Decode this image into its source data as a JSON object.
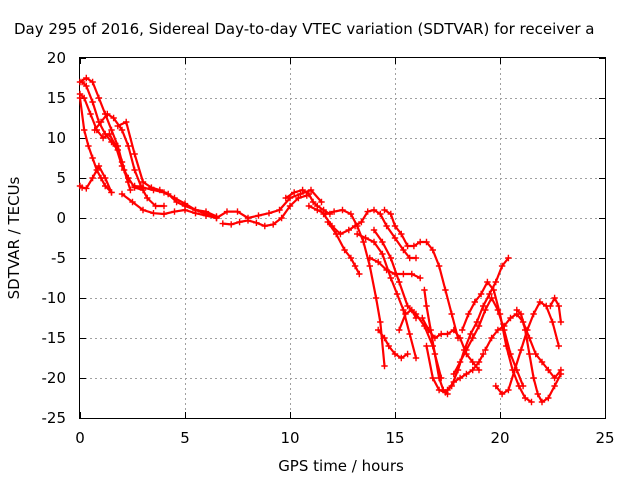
{
  "chart_data": {
    "type": "scatter",
    "title": "Day 295 of 2016, Sidereal Day-to-day VTEC variation (SDTVAR) for receiver a",
    "xlabel": "GPS time / hours",
    "ylabel": "SDTVAR / TECUs",
    "xlim": [
      0,
      25
    ],
    "ylim": [
      -25,
      20
    ],
    "xticks": [
      "0",
      "5",
      "10",
      "15",
      "20",
      "25"
    ],
    "yticks": [
      "20",
      "15",
      "10",
      "5",
      "0",
      "-5",
      "-10",
      "-15",
      "-20",
      "-25"
    ],
    "grid": true,
    "legend": "none",
    "marker": "plus",
    "color": "#ff0000",
    "series": [
      {
        "x": [
          0.0,
          0.1,
          0.3,
          0.6,
          0.9,
          1.2,
          1.5
        ],
        "y": [
          4.0,
          3.8,
          3.7,
          5.0,
          6.5,
          5.0,
          3.2
        ]
      },
      {
        "x": [
          0.0,
          0.2,
          0.4,
          0.6,
          0.8,
          1.0,
          1.2,
          1.5
        ],
        "y": [
          15.0,
          11.0,
          9.0,
          7.5,
          6.0,
          5.0,
          4.0,
          3.2
        ]
      },
      {
        "x": [
          0.0,
          0.2,
          0.5,
          0.8,
          1.1,
          1.4,
          1.7,
          2.0,
          2.3,
          2.6,
          3.0
        ],
        "y": [
          15.5,
          15.0,
          13.0,
          11.0,
          10.0,
          10.5,
          9.0,
          6.5,
          5.0,
          3.8,
          3.5
        ]
      },
      {
        "x": [
          0.1,
          0.3,
          0.6,
          0.9,
          1.2,
          1.5,
          1.8,
          2.0,
          2.3
        ],
        "y": [
          17.0,
          16.5,
          14.5,
          12.0,
          10.5,
          9.5,
          8.5,
          7.0,
          4.5
        ]
      },
      {
        "x": [
          0.0,
          0.3,
          0.6,
          0.9,
          1.2,
          1.5,
          1.8,
          2.1,
          2.4
        ],
        "y": [
          17.0,
          17.5,
          17.0,
          15.0,
          13.0,
          11.0,
          9.0,
          6.0,
          3.5
        ]
      },
      {
        "x": [
          0.7,
          1.0,
          1.3,
          1.6,
          2.0,
          2.3,
          2.6,
          2.9,
          3.2,
          3.6,
          4.0
        ],
        "y": [
          11.0,
          12.0,
          13.0,
          12.5,
          11.0,
          9.0,
          6.0,
          4.0,
          2.5,
          1.5,
          1.5
        ]
      },
      {
        "x": [
          1.8,
          2.2,
          2.6,
          3.0,
          3.4,
          3.8,
          4.2,
          4.6,
          5.0,
          5.5,
          6.0,
          6.5
        ],
        "y": [
          11.5,
          12.0,
          8.0,
          4.5,
          3.8,
          3.5,
          3.0,
          2.0,
          1.5,
          1.0,
          0.8,
          0.2
        ]
      },
      {
        "x": [
          2.0,
          2.5,
          3.0,
          3.5,
          4.0,
          4.5,
          5.0,
          5.5,
          6.0,
          6.5,
          7.0,
          7.5,
          8.0,
          8.5,
          9.0,
          9.5,
          10.0,
          10.5,
          11.0,
          11.5
        ],
        "y": [
          3.0,
          2.0,
          1.0,
          0.6,
          0.5,
          0.8,
          1.0,
          0.6,
          0.3,
          0.0,
          0.8,
          0.8,
          0.0,
          0.3,
          0.6,
          1.0,
          2.5,
          3.0,
          3.5,
          2.0
        ]
      },
      {
        "x": [
          2.6,
          3.0,
          3.5,
          4.0,
          4.5,
          5.0,
          5.5,
          6.0,
          6.5
        ],
        "y": [
          4.0,
          3.8,
          3.5,
          3.2,
          2.5,
          1.8,
          1.0,
          0.5,
          0.0
        ]
      },
      {
        "x": [
          6.8,
          7.2,
          7.6,
          8.0,
          8.4,
          8.8,
          9.2,
          9.6,
          10.0,
          10.4,
          10.8
        ],
        "y": [
          -0.7,
          -0.8,
          -0.5,
          -0.3,
          -0.6,
          -1.0,
          -0.8,
          0.0,
          1.5,
          2.5,
          2.8
        ]
      },
      {
        "x": [
          9.8,
          10.2,
          10.6,
          10.9,
          11.1,
          11.3,
          11.6,
          11.9
        ],
        "y": [
          2.5,
          3.2,
          3.5,
          3.0,
          2.0,
          1.5,
          1.0,
          0.5
        ]
      },
      {
        "x": [
          10.9,
          11.3,
          11.7,
          12.1,
          12.5,
          12.9,
          13.2,
          13.5,
          13.8,
          14.1,
          14.3,
          14.5
        ],
        "y": [
          1.5,
          1.0,
          0.5,
          0.8,
          1.0,
          0.5,
          -1.0,
          -3.0,
          -6.0,
          -10.0,
          -13.0,
          -18.5
        ]
      },
      {
        "x": [
          11.6,
          12.0,
          12.4,
          12.8,
          13.1,
          13.4,
          13.7,
          14.0,
          14.3,
          14.6,
          15.0,
          15.4,
          15.7,
          16.0
        ],
        "y": [
          0.5,
          -1.0,
          -2.0,
          -1.5,
          -1.0,
          -0.5,
          0.8,
          1.0,
          0.5,
          -1.0,
          -2.5,
          -4.0,
          -5.0,
          -5.0
        ]
      },
      {
        "x": [
          11.8,
          12.2,
          12.6,
          12.9,
          13.1,
          13.3
        ],
        "y": [
          -0.5,
          -2.0,
          -4.0,
          -5.0,
          -6.0,
          -7.0
        ]
      },
      {
        "x": [
          13.2,
          13.6,
          14.0,
          14.4,
          14.8,
          15.1,
          15.4,
          15.7,
          16.0
        ],
        "y": [
          -2.0,
          -2.5,
          -3.0,
          -4.5,
          -7.5,
          -9.5,
          -11.5,
          -14.5,
          -17.5
        ]
      },
      {
        "x": [
          13.8,
          14.2,
          14.6,
          15.0,
          15.4,
          15.8,
          16.2
        ],
        "y": [
          -5.0,
          -5.5,
          -6.5,
          -7.0,
          -7.0,
          -7.0,
          -7.5
        ]
      },
      {
        "x": [
          14.0,
          14.4,
          14.8,
          15.2,
          15.6,
          16.0,
          16.4,
          16.8,
          17.2
        ],
        "y": [
          -1.5,
          -3.0,
          -5.0,
          -8.0,
          -11.0,
          -12.0,
          -13.5,
          -16.0,
          -20.0
        ]
      },
      {
        "x": [
          14.5,
          14.8,
          15.0,
          15.3,
          15.6,
          15.9,
          16.2,
          16.5,
          16.8,
          17.1,
          17.4,
          17.7,
          18.0
        ],
        "y": [
          1.0,
          0.5,
          -1.0,
          -2.0,
          -3.5,
          -3.5,
          -3.0,
          -3.0,
          -4.0,
          -6.0,
          -9.0,
          -12.0,
          -15.0
        ]
      },
      {
        "x": [
          14.2,
          14.5,
          14.7,
          15.0,
          15.3,
          15.6
        ],
        "y": [
          -14.0,
          -15.0,
          -16.0,
          -17.0,
          -17.5,
          -17.0
        ]
      },
      {
        "x": [
          15.2,
          15.5,
          15.8,
          16.0
        ],
        "y": [
          -14.0,
          -12.0,
          -11.5,
          -12.5
        ]
      },
      {
        "x": [
          16.4,
          16.5,
          16.7,
          16.9,
          17.1,
          17.3,
          17.5
        ],
        "y": [
          -9.0,
          -11.0,
          -14.0,
          -17.0,
          -20.0,
          -21.5,
          -22.0
        ]
      },
      {
        "x": [
          16.5,
          16.8,
          17.1,
          17.4,
          17.7,
          18.0,
          18.3,
          18.6,
          18.9,
          19.2,
          19.5,
          19.8,
          20.1,
          20.4
        ],
        "y": [
          -16.0,
          -20.0,
          -21.5,
          -21.8,
          -21.0,
          -19.0,
          -16.5,
          -14.5,
          -13.0,
          -11.0,
          -9.5,
          -8.0,
          -6.0,
          -5.0
        ]
      },
      {
        "x": [
          16.3,
          16.6,
          16.9,
          17.2,
          17.5,
          17.8,
          18.1,
          18.4,
          18.7,
          19.0
        ],
        "y": [
          -12.5,
          -14.0,
          -15.0,
          -14.5,
          -14.5,
          -14.0,
          -15.0,
          -17.0,
          -18.0,
          -19.0
        ]
      },
      {
        "x": [
          17.5,
          17.8,
          18.1,
          18.4,
          18.7,
          19.0,
          19.2
        ],
        "y": [
          -21.5,
          -20.5,
          -20.0,
          -19.5,
          -19.0,
          -18.0,
          -17.0
        ]
      },
      {
        "x": [
          17.8,
          18.1,
          18.4,
          18.7,
          19.0,
          19.3,
          19.6,
          19.9,
          20.2,
          20.5,
          20.8,
          21.1
        ],
        "y": [
          -19.5,
          -18.0,
          -16.5,
          -15.0,
          -13.5,
          -11.5,
          -10.0,
          -11.5,
          -14.0,
          -17.0,
          -19.0,
          -21.0
        ]
      },
      {
        "x": [
          18.2,
          18.5,
          18.8,
          19.1,
          19.4,
          19.7,
          20.0,
          20.3,
          20.6,
          20.9,
          21.2,
          21.5
        ],
        "y": [
          -14.0,
          -12.0,
          -10.5,
          -9.5,
          -8.0,
          -9.0,
          -12.0,
          -16.0,
          -19.0,
          -21.0,
          -22.5,
          -23.0
        ]
      },
      {
        "x": [
          19.3,
          19.6,
          19.9,
          20.2,
          20.5,
          20.8,
          21.1,
          21.4,
          21.7,
          22.0,
          22.3,
          22.6,
          22.9
        ],
        "y": [
          -16.5,
          -15.0,
          -14.0,
          -13.5,
          -12.5,
          -12.0,
          -13.0,
          -15.0,
          -17.0,
          -18.0,
          -19.0,
          -20.0,
          -19.0
        ]
      },
      {
        "x": [
          19.8,
          20.1,
          20.4,
          20.7,
          21.0,
          21.3,
          21.6,
          21.9,
          22.2,
          22.5,
          22.8
        ],
        "y": [
          -21.0,
          -22.0,
          -21.5,
          -19.0,
          -16.5,
          -14.0,
          -12.0,
          -10.5,
          -11.0,
          -13.0,
          -16.0
        ]
      },
      {
        "x": [
          20.8,
          21.0,
          21.2,
          21.4,
          21.6,
          21.8,
          22.0,
          22.3,
          22.6,
          22.9
        ],
        "y": [
          -11.5,
          -12.0,
          -14.0,
          -17.0,
          -20.0,
          -22.0,
          -23.0,
          -22.5,
          -21.0,
          -19.5
        ]
      },
      {
        "x": [
          22.4,
          22.6,
          22.8,
          22.9
        ],
        "y": [
          -11.0,
          -10.0,
          -11.0,
          -13.0
        ]
      }
    ]
  }
}
